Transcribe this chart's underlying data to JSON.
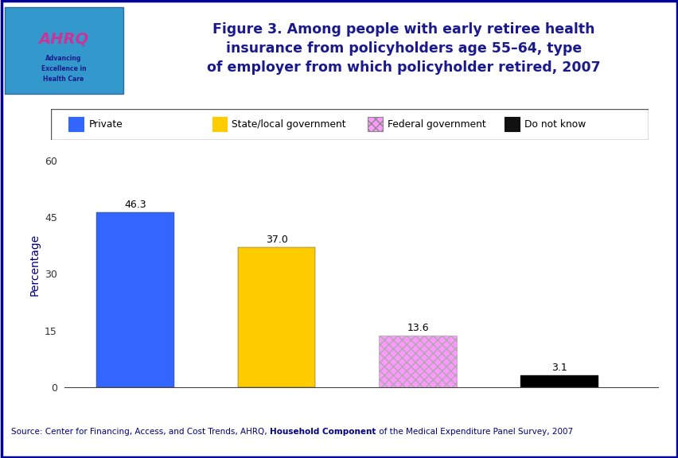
{
  "categories": [
    "Private",
    "State/local government",
    "Federal government",
    "Do not know"
  ],
  "values": [
    46.3,
    37.0,
    13.6,
    3.1
  ],
  "bar_colors": [
    "#3366FF",
    "#FFCC00",
    "#FF99FF",
    "#000000"
  ],
  "bar_hatch": [
    null,
    null,
    "xxx",
    null
  ],
  "title_line1": "Figure 3. Among people with early retiree health",
  "title_line2": "insurance from policyholders age 55–64, type",
  "title_line3": "of employer from which policyholder retired, 2007",
  "ylabel": "Percentage",
  "ylim": [
    0,
    65
  ],
  "yticks": [
    0,
    15,
    30,
    45,
    60
  ],
  "title_color": "#1a1a8c",
  "title_fontsize": 12.5,
  "axis_label_fontsize": 10,
  "tick_fontsize": 9,
  "value_label_fontsize": 9,
  "legend_labels": [
    "Private",
    "State/local government",
    "Federal government",
    "Do not know"
  ],
  "legend_colors": [
    "#3366FF",
    "#FFCC00",
    "#FF99FF",
    "#000000"
  ],
  "legend_hatch": [
    null,
    null,
    "xxx",
    null
  ],
  "source_text_normal": "Source: Center for Financing, Access, and Cost Trends, AHRQ, ",
  "source_text_bold": "Household Component",
  "source_text_end": " of the Medical Expenditure Panel Survey, 2007",
  "source_color": "#000080",
  "divider_color": "#000099",
  "outer_border_color": "#000099",
  "header_logo_bg": "#3399CC",
  "figure_bg": "#FFFFFF",
  "chart_bg": "#FFFFFF"
}
